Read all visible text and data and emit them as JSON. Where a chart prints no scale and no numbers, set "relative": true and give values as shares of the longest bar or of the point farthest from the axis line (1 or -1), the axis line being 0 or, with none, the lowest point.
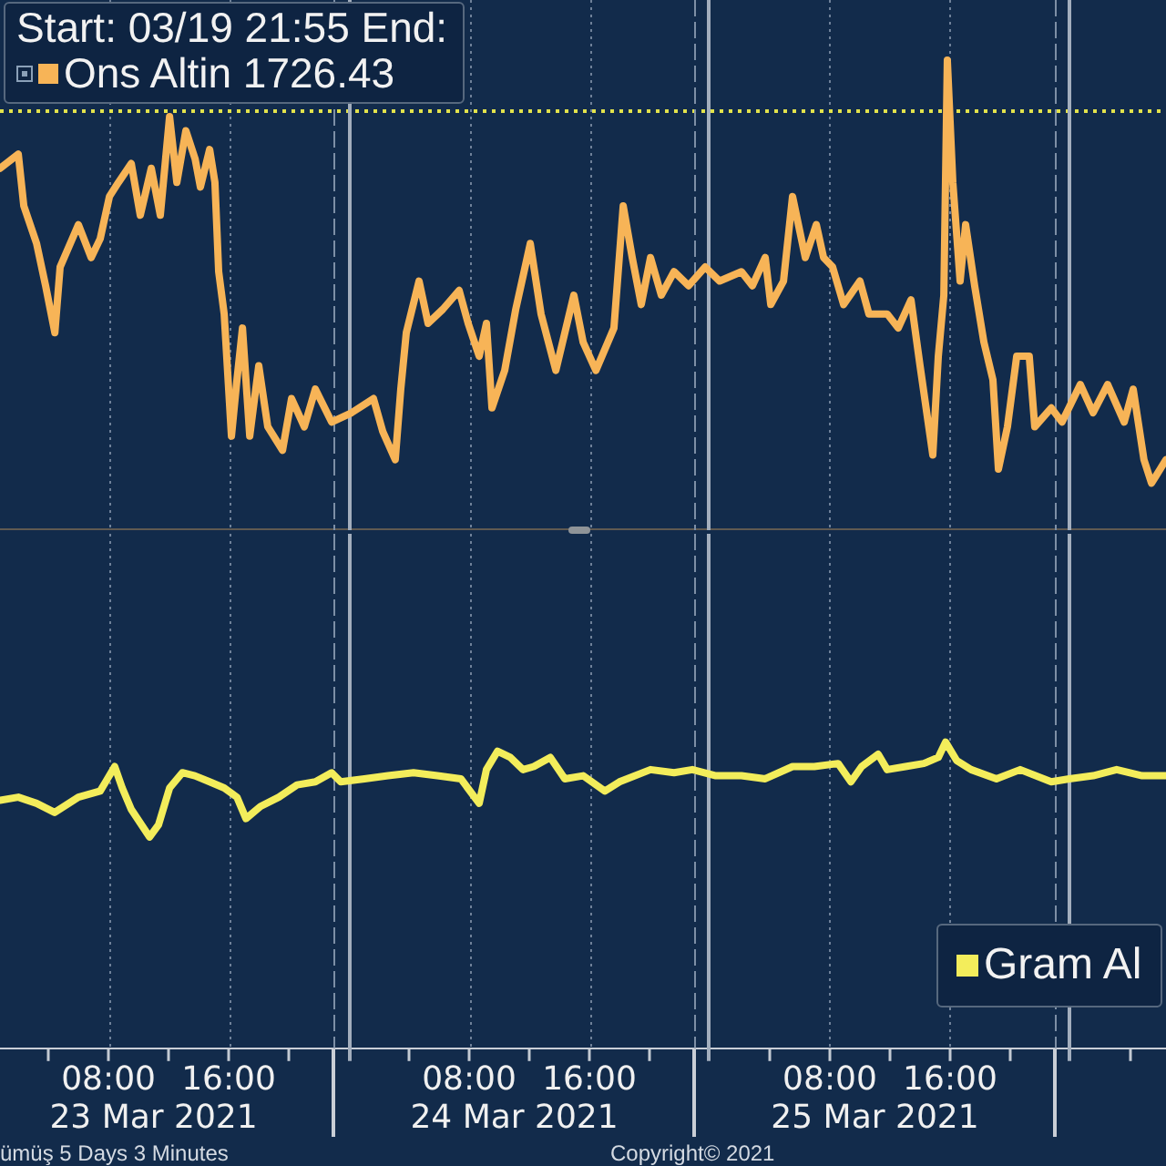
{
  "chart_data": [
    {
      "type": "line",
      "relative": true,
      "legend": "top left",
      "legend_title": "Start: 03/19 21:55 End:",
      "grid": "x",
      "tick_labels": false,
      "xlim": [
        "2021-03-23T00:47",
        "2021-03-26T06:22"
      ],
      "xticks": [
        "2021-03-23T08:00",
        "2021-03-23T16:00",
        "2021-03-24T08:00",
        "2021-03-24T16:00",
        "2021-03-25T08:00",
        "2021-03-25T16:00"
      ],
      "ref_lines": [
        {
          "axis": "y",
          "value": 0.89,
          "color": "#e2e24c",
          "line_style": "dotted"
        },
        {
          "axis": "x",
          "value": "2021-03-23T23:00",
          "color": "#7d8fa6",
          "line_style": "dashed"
        },
        {
          "axis": "x",
          "value": "2021-03-24T00:00",
          "color": "#a3aebd"
        },
        {
          "axis": "x",
          "value": "2021-03-24T23:00",
          "color": "#7d8fa6",
          "line_style": "dashed"
        },
        {
          "axis": "x",
          "value": "2021-03-25T00:00",
          "color": "#a3aebd"
        },
        {
          "axis": "x",
          "value": "2021-03-25T23:00",
          "color": "#7d8fa6",
          "line_style": "dashed"
        },
        {
          "axis": "x",
          "value": "2021-03-26T00:00",
          "color": "#a3aebd"
        }
      ],
      "x": [
        "2021-03-23T00:47",
        "2021-03-23T02:00",
        "2021-03-23T02:22",
        "2021-03-23T03:13",
        "2021-03-23T03:49",
        "2021-03-23T04:26",
        "2021-03-23T04:47",
        "2021-03-23T06:00",
        "2021-03-23T06:51",
        "2021-03-23T07:27",
        "2021-03-23T08:04",
        "2021-03-23T08:40",
        "2021-03-23T09:31",
        "2021-03-23T10:07",
        "2021-03-23T10:51",
        "2021-03-23T11:27",
        "2021-03-23T12:04",
        "2021-03-23T12:33",
        "2021-03-23T13:09",
        "2021-03-23T13:46",
        "2021-03-23T14:07",
        "2021-03-23T14:44",
        "2021-03-23T15:05",
        "2021-03-23T15:20",
        "2021-03-23T15:42",
        "2021-03-23T16:11",
        "2021-03-23T16:33",
        "2021-03-23T16:55",
        "2021-03-23T17:24",
        "2021-03-23T18:00",
        "2021-03-23T18:36",
        "2021-03-23T19:35",
        "2021-03-23T20:11",
        "2021-03-23T21:02",
        "2021-03-23T21:46",
        "2021-03-23T22:51",
        "2021-03-24T00:11",
        "2021-03-24T01:38",
        "2021-03-24T02:15",
        "2021-03-24T03:05",
        "2021-03-24T03:27",
        "2021-03-24T03:49",
        "2021-03-24T04:40",
        "2021-03-24T05:16",
        "2021-03-24T06:15",
        "2021-03-24T07:20",
        "2021-03-24T07:56",
        "2021-03-24T08:40",
        "2021-03-24T09:09",
        "2021-03-24T09:31",
        "2021-03-24T10:22",
        "2021-03-24T11:06",
        "2021-03-24T12:04",
        "2021-03-24T12:47",
        "2021-03-24T13:46",
        "2021-03-24T14:58",
        "2021-03-24T15:35",
        "2021-03-24T16:26",
        "2021-03-24T17:38",
        "2021-03-24T18:15",
        "2021-03-24T18:51",
        "2021-03-24T19:27",
        "2021-03-24T20:04",
        "2021-03-24T20:47",
        "2021-03-24T21:38",
        "2021-03-24T22:36",
        "2021-03-24T23:42",
        "2021-03-25T00:40",
        "2021-03-25T02:07",
        "2021-03-25T02:51",
        "2021-03-25T03:42",
        "2021-03-25T04:04",
        "2021-03-25T04:55",
        "2021-03-25T05:31",
        "2021-03-25T06:22",
        "2021-03-25T07:06",
        "2021-03-25T07:35",
        "2021-03-25T08:11",
        "2021-03-25T08:55",
        "2021-03-25T10:00",
        "2021-03-25T10:36",
        "2021-03-25T11:49",
        "2021-03-25T12:33",
        "2021-03-25T13:24",
        "2021-03-25T14:00",
        "2021-03-25T14:51",
        "2021-03-25T15:13",
        "2021-03-25T15:35",
        "2021-03-25T15:49",
        "2021-03-25T16:11",
        "2021-03-25T16:40",
        "2021-03-25T17:02",
        "2021-03-25T17:38",
        "2021-03-25T18:15",
        "2021-03-25T18:51",
        "2021-03-25T19:13",
        "2021-03-25T19:49",
        "2021-03-25T20:26",
        "2021-03-25T21:16",
        "2021-03-25T21:38",
        "2021-03-25T22:44",
        "2021-03-25T23:27",
        "2021-03-26T00:40",
        "2021-03-26T01:31",
        "2021-03-26T02:29",
        "2021-03-26T03:35",
        "2021-03-26T04:11",
        "2021-03-26T04:54",
        "2021-03-26T05:24",
        "2021-03-26T06:22"
      ],
      "series": [
        {
          "name": "Ons Altin 1726.43",
          "color": "#f7b457",
          "values": [
            0.77,
            0.8,
            0.69,
            0.61,
            0.52,
            0.42,
            0.56,
            0.65,
            0.58,
            0.62,
            0.71,
            0.74,
            0.78,
            0.67,
            0.77,
            0.67,
            0.88,
            0.74,
            0.85,
            0.79,
            0.73,
            0.81,
            0.74,
            0.55,
            0.46,
            0.2,
            0.32,
            0.43,
            0.2,
            0.35,
            0.22,
            0.17,
            0.28,
            0.22,
            0.3,
            0.23,
            0.25,
            0.28,
            0.21,
            0.15,
            0.3,
            0.42,
            0.53,
            0.44,
            0.47,
            0.51,
            0.44,
            0.37,
            0.44,
            0.26,
            0.34,
            0.47,
            0.61,
            0.46,
            0.34,
            0.5,
            0.4,
            0.34,
            0.43,
            0.69,
            0.58,
            0.48,
            0.58,
            0.5,
            0.55,
            0.52,
            0.56,
            0.53,
            0.55,
            0.52,
            0.58,
            0.48,
            0.53,
            0.71,
            0.58,
            0.65,
            0.58,
            0.56,
            0.48,
            0.53,
            0.46,
            0.46,
            0.43,
            0.49,
            0.35,
            0.16,
            0.37,
            0.5,
            1,
            0.74,
            0.53,
            0.65,
            0.52,
            0.4,
            0.32,
            0.13,
            0.22,
            0.37,
            0.37,
            0.22,
            0.26,
            0.23,
            0.31,
            0.25,
            0.31,
            0.23,
            0.3,
            0.15,
            0.1,
            0.15
          ]
        }
      ]
    },
    {
      "type": "line",
      "relative": true,
      "legend": "bottom right",
      "grid": "x",
      "xlim": [
        "2021-03-23T00:47",
        "2021-03-26T06:22"
      ],
      "xticks": [
        {
          "value": "2021-03-23T04:00",
          "label": null
        },
        {
          "value": "2021-03-23T08:00",
          "label": "08:00"
        },
        {
          "value": "2021-03-23T12:00",
          "label": null
        },
        {
          "value": "2021-03-23T16:00",
          "label": "16:00"
        },
        {
          "value": "2021-03-23T20:00",
          "label": null
        },
        {
          "value": "2021-03-24T04:00",
          "label": null
        },
        {
          "value": "2021-03-24T08:00",
          "label": "08:00"
        },
        {
          "value": "2021-03-24T12:00",
          "label": null
        },
        {
          "value": "2021-03-24T16:00",
          "label": "16:00"
        },
        {
          "value": "2021-03-24T20:00",
          "label": null
        },
        {
          "value": "2021-03-25T04:00",
          "label": null
        },
        {
          "value": "2021-03-25T08:00",
          "label": "08:00"
        },
        {
          "value": "2021-03-25T12:00",
          "label": null
        },
        {
          "value": "2021-03-25T16:00",
          "label": "16:00"
        },
        {
          "value": "2021-03-25T20:00",
          "label": null
        },
        {
          "value": "2021-03-26T04:00",
          "label": null
        }
      ],
      "x2lim": [
        "2021-03-23T00:47",
        "2021-03-26T06:22"
      ],
      "x2ticks": [
        {
          "value": "2021-03-23T11:00",
          "label": "23 Mar 2021"
        },
        {
          "value": "2021-03-23T23:00",
          "label": null
        },
        {
          "value": "2021-03-24T11:00",
          "label": "24 Mar 2021"
        },
        {
          "value": "2021-03-24T23:00",
          "label": null
        },
        {
          "value": "2021-03-25T11:00",
          "label": "25 Mar 2021"
        },
        {
          "value": "2021-03-25T23:00",
          "label": null
        }
      ],
      "ref_lines": [
        {
          "axis": "x",
          "value": "2021-03-24T00:00",
          "color": "#a3aebd"
        },
        {
          "axis": "x",
          "value": "2021-03-25T00:00",
          "color": "#a3aebd"
        },
        {
          "axis": "x",
          "value": "2021-03-26T00:00",
          "color": "#a3aebd"
        }
      ],
      "annotations": [
        "ümüş 5 Days 3 Minutes",
        "Copyright© 2021"
      ],
      "x": [
        "2021-03-23T00:47",
        "2021-03-23T02:00",
        "2021-03-23T03:13",
        "2021-03-23T04:25",
        "2021-03-23T06:00",
        "2021-03-23T07:27",
        "2021-03-23T07:49",
        "2021-03-23T08:25",
        "2021-03-23T08:55",
        "2021-03-23T09:31",
        "2021-03-23T10:44",
        "2021-03-23T11:20",
        "2021-03-23T12:04",
        "2021-03-23T12:55",
        "2021-03-23T13:45",
        "2021-03-23T14:44",
        "2021-03-23T15:42",
        "2021-03-23T16:33",
        "2021-03-23T17:09",
        "2021-03-23T18:07",
        "2021-03-23T19:20",
        "2021-03-23T20:33",
        "2021-03-23T21:46",
        "2021-03-23T22:51",
        "2021-03-23T23:27",
        "2021-03-24T01:02",
        "2021-03-24T02:36",
        "2021-03-24T04:18",
        "2021-03-24T05:53",
        "2021-03-24T07:27",
        "2021-03-24T08:40",
        "2021-03-24T09:09",
        "2021-03-24T09:53",
        "2021-03-24T10:44",
        "2021-03-24T11:35",
        "2021-03-24T12:18",
        "2021-03-24T13:24",
        "2021-03-24T14:22",
        "2021-03-24T15:35",
        "2021-03-24T17:02",
        "2021-03-24T18:00",
        "2021-03-24T20:04",
        "2021-03-24T21:38",
        "2021-03-24T22:51",
        "2021-03-25T00:25",
        "2021-03-25T02:07",
        "2021-03-25T03:42",
        "2021-03-25T05:31",
        "2021-03-25T06:58",
        "2021-03-25T08:33",
        "2021-03-25T09:24",
        "2021-03-25T10:07",
        "2021-03-25T11:13",
        "2021-03-25T11:49",
        "2021-03-25T13:02",
        "2021-03-25T14:15",
        "2021-03-25T15:13",
        "2021-03-25T15:42",
        "2021-03-25T16:26",
        "2021-03-25T17:24",
        "2021-03-25T19:05",
        "2021-03-25T20:40",
        "2021-03-25T22:44",
        "2021-03-25T23:56",
        "2021-03-26T01:31",
        "2021-03-26T03:05",
        "2021-03-26T04:47",
        "2021-03-26T06:22"
      ],
      "series": [
        {
          "name": "Gram Al",
          "color": "#f3ed5b",
          "values": [
            0.81,
            0.82,
            0.8,
            0.77,
            0.82,
            0.84,
            0.87,
            0.92,
            0.85,
            0.78,
            0.69,
            0.73,
            0.85,
            0.9,
            0.89,
            0.87,
            0.85,
            0.82,
            0.75,
            0.79,
            0.82,
            0.86,
            0.87,
            0.9,
            0.87,
            0.88,
            0.89,
            0.9,
            0.89,
            0.88,
            0.8,
            0.91,
            0.97,
            0.95,
            0.91,
            0.92,
            0.95,
            0.88,
            0.89,
            0.84,
            0.87,
            0.91,
            0.9,
            0.91,
            0.89,
            0.89,
            0.88,
            0.92,
            0.92,
            0.93,
            0.87,
            0.92,
            0.96,
            0.91,
            0.92,
            0.93,
            0.95,
            1,
            0.94,
            0.91,
            0.88,
            0.91,
            0.87,
            0.88,
            0.89,
            0.91,
            0.89,
            0.89
          ]
        }
      ]
    }
  ]
}
